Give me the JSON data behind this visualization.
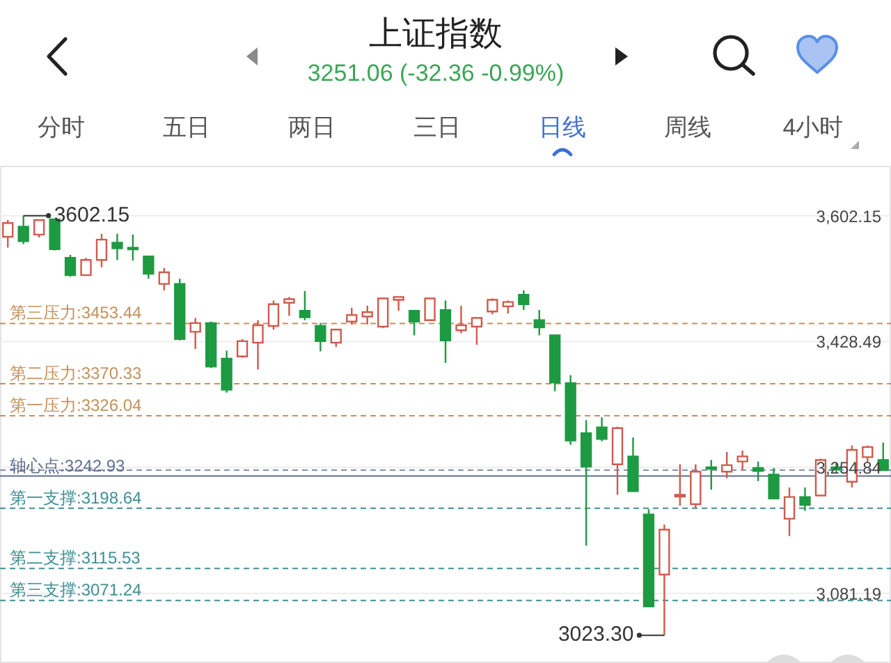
{
  "chart_data": {
    "type": "candlestick",
    "title": "上证指数",
    "subtitle": "3251.06 (-32.36 -0.99%)",
    "annotations": [
      "3602.15",
      "3023.30",
      "分时",
      "五日",
      "两日",
      "三日",
      "日线",
      "周线",
      "4小时"
    ],
    "categories": [
      null,
      null,
      null,
      null,
      null,
      null,
      null,
      null,
      null,
      null,
      null,
      null,
      null,
      null,
      null,
      null,
      null,
      null,
      null,
      null,
      null,
      null,
      null,
      null,
      null,
      null,
      null,
      null,
      null,
      null,
      null,
      null,
      null,
      null,
      null,
      null,
      null,
      null,
      null,
      null,
      null,
      null,
      null,
      null,
      null,
      null,
      null,
      null,
      null,
      null,
      null,
      null,
      null,
      null,
      null,
      null,
      null
    ],
    "ohlc": [
      [
        3573,
        3596,
        3558,
        3592
      ],
      [
        3587,
        3602.15,
        3563,
        3567
      ],
      [
        3576,
        3597,
        3572,
        3596
      ],
      [
        3597,
        3598,
        3554,
        3556
      ],
      [
        3544,
        3548,
        3518,
        3520
      ],
      [
        3520,
        3544,
        3519,
        3541
      ],
      [
        3541,
        3577,
        3531,
        3569
      ],
      [
        3565,
        3577,
        3541,
        3557
      ],
      [
        3558,
        3576,
        3540,
        3556
      ],
      [
        3546,
        3547,
        3515,
        3522
      ],
      [
        3508,
        3530,
        3499,
        3524
      ],
      [
        3508,
        3515,
        3430,
        3432
      ],
      [
        3442,
        3461,
        3418,
        3454
      ],
      [
        3454,
        3456,
        3392,
        3394
      ],
      [
        3405,
        3416,
        3358,
        3362
      ],
      [
        3408,
        3432,
        3406,
        3429
      ],
      [
        3427,
        3458,
        3390,
        3451
      ],
      [
        3450,
        3485,
        3445,
        3480
      ],
      [
        3482,
        3490,
        3464,
        3487
      ],
      [
        3471,
        3498,
        3458,
        3462
      ],
      [
        3450,
        3454,
        3415,
        3429
      ],
      [
        3427,
        3446,
        3421,
        3445
      ],
      [
        3456,
        3475,
        3452,
        3465
      ],
      [
        3463,
        3478,
        3452,
        3469
      ],
      [
        3449,
        3489,
        3447,
        3488
      ],
      [
        3486,
        3491,
        3471,
        3490
      ],
      [
        3471,
        3472,
        3437,
        3456
      ],
      [
        3458,
        3489,
        3457,
        3488
      ],
      [
        3472,
        3485,
        3399,
        3430
      ],
      [
        3444,
        3478,
        3440,
        3451
      ],
      [
        3449,
        3462,
        3424,
        3461
      ],
      [
        3470,
        3488,
        3466,
        3486
      ],
      [
        3477,
        3485,
        3467,
        3483
      ],
      [
        3493,
        3499,
        3472,
        3480
      ],
      [
        3458,
        3472,
        3437,
        3448
      ],
      [
        3437,
        3438,
        3360,
        3372
      ],
      [
        3371,
        3382,
        3286,
        3292
      ],
      [
        3302,
        3320,
        3147,
        3256
      ],
      [
        3310,
        3324,
        3291,
        3294
      ],
      [
        3259,
        3311,
        3217,
        3309
      ],
      [
        3270,
        3296,
        3222,
        3222
      ],
      [
        3190,
        3197,
        3062,
        3063
      ],
      [
        3107,
        3176,
        3023.3,
        3169
      ],
      [
        3215,
        3259,
        3202,
        3217
      ],
      [
        3204,
        3259,
        3198,
        3249
      ],
      [
        3255,
        3265,
        3224,
        3253
      ],
      [
        3249,
        3276,
        3240,
        3258
      ],
      [
        3263,
        3278,
        3252,
        3270
      ],
      [
        3254,
        3263,
        3236,
        3250
      ],
      [
        3245,
        3254,
        3211,
        3212
      ],
      [
        3184,
        3227,
        3160,
        3214
      ],
      [
        3214,
        3227,
        3195,
        3203
      ],
      [
        3216,
        3267,
        3215,
        3265
      ],
      [
        3255,
        3260,
        3247,
        3252
      ],
      [
        3235,
        3285,
        3227,
        3279
      ],
      [
        3269,
        3285,
        3262,
        3283
      ],
      [
        3265,
        3289,
        3250,
        3251.06
      ]
    ],
    "colors": [
      "#d05a4e",
      "#1e9a42",
      "#d05a4e",
      "#1e9a42",
      "#1e9a42",
      "#d05a4e",
      "#d05a4e",
      "#1e9a42",
      "#1e9a42",
      "#1e9a42",
      "#d05a4e",
      "#1e9a42",
      "#d05a4e",
      "#1e9a42",
      "#1e9a42",
      "#d05a4e",
      "#d05a4e",
      "#d05a4e",
      "#d05a4e",
      "#1e9a42",
      "#1e9a42",
      "#d05a4e",
      "#d05a4e",
      "#d05a4e",
      "#d05a4e",
      "#d05a4e",
      "#1e9a42",
      "#d05a4e",
      "#1e9a42",
      "#d05a4e",
      "#d05a4e",
      "#d05a4e",
      "#d05a4e",
      "#1e9a42",
      "#1e9a42",
      "#1e9a42",
      "#1e9a42",
      "#1e9a42",
      "#1e9a42",
      "#d05a4e",
      "#1e9a42",
      "#1e9a42",
      "#d05a4e",
      "#d05a4e",
      "#d05a4e",
      "#1e9a42",
      "#d05a4e",
      "#d05a4e",
      "#1e9a42",
      "#1e9a42",
      "#d05a4e",
      "#1e9a42",
      "#d05a4e",
      "#1e9a42",
      "#d05a4e",
      "#d05a4e",
      "#1e9a42"
    ],
    "ylim": [
      2985,
      3671
    ],
    "yticks": [
      {
        "value": 3602.15,
        "label": "3,602.15"
      },
      {
        "value": 3428.49,
        "label": "3,428.49"
      },
      {
        "value": 3254.84,
        "label": "3,254.84"
      },
      {
        "value": 3081.19,
        "label": "3,081.19"
      }
    ],
    "grid": "y",
    "ref_lines": [
      {
        "axis": "y",
        "value": 3453.44,
        "label": "第三压力:3453.44",
        "color": "#c4915c",
        "line_style": "dashed"
      },
      {
        "axis": "y",
        "value": 3370.33,
        "label": "第二压力:3370.33",
        "color": "#c4915c",
        "line_style": "dashed"
      },
      {
        "axis": "y",
        "value": 3326.04,
        "label": "第一压力:3326.04",
        "color": "#c4915c",
        "line_style": "dashed"
      },
      {
        "axis": "y",
        "value": 3251.06,
        "color": "#8191b0",
        "line_style": "dashed"
      },
      {
        "axis": "y",
        "value": 3242.93,
        "label": "轴心点:3242.93",
        "color": "#5f6f90",
        "line_style": "solid"
      },
      {
        "axis": "y",
        "value": 3198.64,
        "label": "第一支撑:3198.64",
        "color": "#3e8f95",
        "line_style": "dashed"
      },
      {
        "axis": "y",
        "value": 3115.53,
        "label": "第二支撑:3115.53",
        "color": "#3e8f95",
        "line_style": "dashed"
      },
      {
        "axis": "y",
        "value": 3071.24,
        "label": "第三支撑:3071.24",
        "color": "#3e8f95",
        "line_style": "dashed"
      }
    ]
  }
}
